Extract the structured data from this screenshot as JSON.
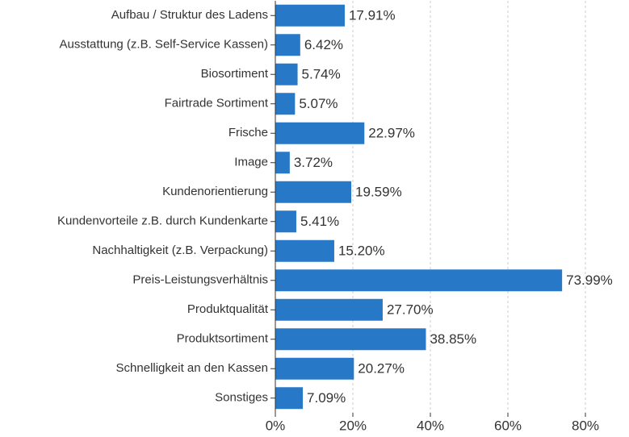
{
  "chart_data": {
    "type": "hbar",
    "categories": [
      "Aufbau / Struktur des Ladens",
      "Ausstattung (z.B. Self-Service Kassen)",
      "Biosortiment",
      "Fairtrade Sortiment",
      "Frische",
      "Image",
      "Kundenorientierung",
      "Kundenvorteile z.B. durch Kundenkarte",
      "Nachhaltigkeit (z.B. Verpackung)",
      "Preis-Leistungsverhältnis",
      "Produktqualität",
      "Produktsortiment",
      "Schnelligkeit an den Kassen",
      "Sonstiges"
    ],
    "values": [
      17.91,
      6.42,
      5.74,
      5.07,
      22.97,
      3.72,
      19.59,
      5.41,
      15.2,
      73.99,
      27.7,
      38.85,
      20.27,
      7.09
    ],
    "value_labels": [
      "17.91%",
      "6.42%",
      "5.74%",
      "5.07%",
      "22.97%",
      "3.72%",
      "19.59%",
      "5.41%",
      "15.20%",
      "73.99%",
      "27.70%",
      "38.85%",
      "20.27%",
      "7.09%"
    ],
    "color": "#2878c8",
    "xlim": [
      0,
      80
    ],
    "xticks": [
      {
        "value": 0,
        "label": "0%"
      },
      {
        "value": 20,
        "label": "20%"
      },
      {
        "value": 40,
        "label": "40%"
      },
      {
        "value": 60,
        "label": "60%"
      },
      {
        "value": 80,
        "label": "80%"
      }
    ],
    "grid": true
  }
}
